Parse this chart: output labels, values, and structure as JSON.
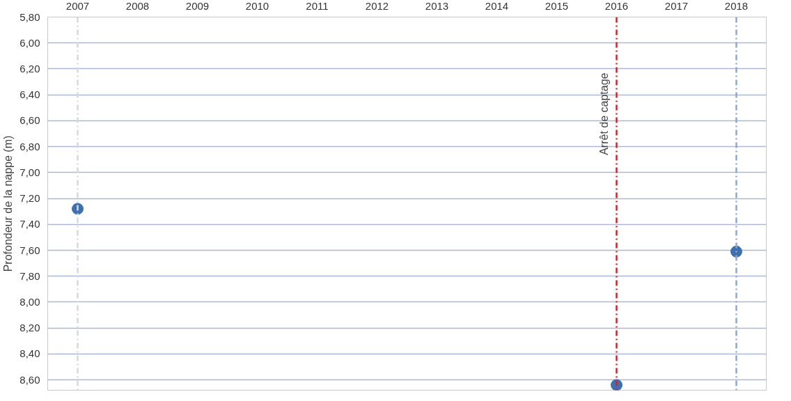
{
  "chart_data": {
    "type": "scatter",
    "ylabel": "Profondeur de la nappe (m)",
    "x": [
      2007,
      2016,
      2018
    ],
    "series": [
      {
        "color": "#3e6fb0",
        "values": [
          7.28,
          8.64,
          7.61
        ]
      }
    ],
    "xlim": [
      2006.5,
      2018.5
    ],
    "xticks": [
      2007,
      2008,
      2009,
      2010,
      2011,
      2012,
      2013,
      2014,
      2015,
      2016,
      2017,
      2018
    ],
    "ylim": [
      8.68,
      5.8
    ],
    "yticks": [
      {
        "value": 5.8,
        "label": "5,80"
      },
      {
        "value": 6.0,
        "label": "6,00"
      },
      {
        "value": 6.2,
        "label": "6,20"
      },
      {
        "value": 6.4,
        "label": "6,40"
      },
      {
        "value": 6.6,
        "label": "6,60"
      },
      {
        "value": 6.8,
        "label": "6,80"
      },
      {
        "value": 7.0,
        "label": "7,00"
      },
      {
        "value": 7.2,
        "label": "7,20"
      },
      {
        "value": 7.4,
        "label": "7,40"
      },
      {
        "value": 7.6,
        "label": "7,60"
      },
      {
        "value": 7.8,
        "label": "7,80"
      },
      {
        "value": 8.0,
        "label": "8,00"
      },
      {
        "value": 8.2,
        "label": "8,20"
      },
      {
        "value": 8.4,
        "label": "8,40"
      },
      {
        "value": 8.6,
        "label": "8,60"
      }
    ],
    "grid": "y",
    "marker": "circle",
    "ref_lines": [
      {
        "axis": "x",
        "value": 2007,
        "color": "#d3d9e3",
        "line_style": "dashed"
      },
      {
        "axis": "x",
        "value": 2016,
        "label": "Arrêt de captage",
        "color": "#c62832",
        "line_style": "dashed"
      },
      {
        "axis": "x",
        "value": 2018,
        "color": "#93a6c4",
        "line_style": "dashed"
      }
    ]
  }
}
